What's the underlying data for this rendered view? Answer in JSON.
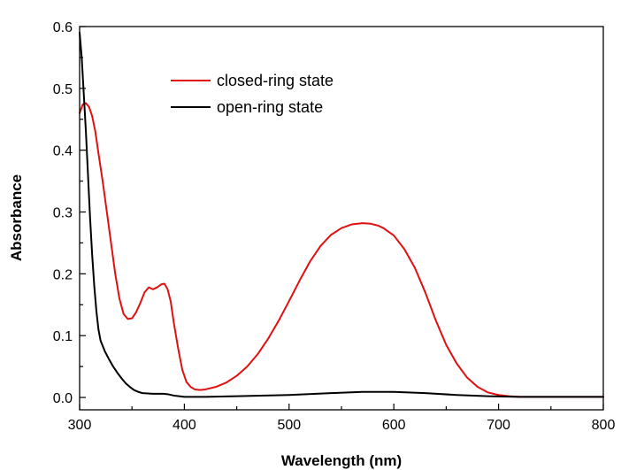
{
  "chart_data": {
    "type": "line",
    "title": "",
    "xlabel": "Wavelength (nm)",
    "ylabel": "Absorbance",
    "xlim": [
      300,
      800
    ],
    "ylim": [
      -0.02,
      0.6
    ],
    "x_ticks": [
      300,
      400,
      500,
      600,
      700,
      800
    ],
    "x_tick_labels": [
      "300",
      "400",
      "500",
      "600",
      "700",
      "800"
    ],
    "y_ticks": [
      0.0,
      0.1,
      0.2,
      0.3,
      0.4,
      0.5,
      0.6
    ],
    "y_tick_labels": [
      "0.0",
      "0.1",
      "0.2",
      "0.3",
      "0.4",
      "0.5",
      "0.6"
    ],
    "grid": false,
    "legend_position": "top-center",
    "series": [
      {
        "name": "closed-ring state",
        "color": "#e01010",
        "points": [
          [
            300,
            0.46
          ],
          [
            303,
            0.474
          ],
          [
            306,
            0.476
          ],
          [
            309,
            0.47
          ],
          [
            312,
            0.455
          ],
          [
            315,
            0.43
          ],
          [
            318,
            0.395
          ],
          [
            322,
            0.35
          ],
          [
            326,
            0.3
          ],
          [
            330,
            0.25
          ],
          [
            334,
            0.2
          ],
          [
            338,
            0.16
          ],
          [
            342,
            0.135
          ],
          [
            346,
            0.127
          ],
          [
            350,
            0.128
          ],
          [
            354,
            0.138
          ],
          [
            358,
            0.153
          ],
          [
            362,
            0.17
          ],
          [
            366,
            0.178
          ],
          [
            370,
            0.175
          ],
          [
            374,
            0.178
          ],
          [
            378,
            0.183
          ],
          [
            381,
            0.184
          ],
          [
            384,
            0.175
          ],
          [
            387,
            0.155
          ],
          [
            390,
            0.12
          ],
          [
            394,
            0.08
          ],
          [
            398,
            0.045
          ],
          [
            402,
            0.025
          ],
          [
            406,
            0.017
          ],
          [
            410,
            0.013
          ],
          [
            415,
            0.012
          ],
          [
            420,
            0.013
          ],
          [
            430,
            0.017
          ],
          [
            440,
            0.024
          ],
          [
            450,
            0.035
          ],
          [
            460,
            0.05
          ],
          [
            470,
            0.07
          ],
          [
            480,
            0.095
          ],
          [
            490,
            0.124
          ],
          [
            500,
            0.156
          ],
          [
            510,
            0.189
          ],
          [
            520,
            0.22
          ],
          [
            530,
            0.245
          ],
          [
            540,
            0.263
          ],
          [
            550,
            0.274
          ],
          [
            560,
            0.28
          ],
          [
            570,
            0.282
          ],
          [
            578,
            0.281
          ],
          [
            585,
            0.278
          ],
          [
            590,
            0.274
          ],
          [
            600,
            0.262
          ],
          [
            610,
            0.24
          ],
          [
            620,
            0.21
          ],
          [
            630,
            0.17
          ],
          [
            640,
            0.125
          ],
          [
            650,
            0.085
          ],
          [
            660,
            0.055
          ],
          [
            670,
            0.032
          ],
          [
            680,
            0.017
          ],
          [
            690,
            0.008
          ],
          [
            700,
            0.004
          ],
          [
            710,
            0.002
          ],
          [
            720,
            0.001
          ],
          [
            750,
            0.001
          ],
          [
            800,
            0.001
          ]
        ]
      },
      {
        "name": "open-ring state",
        "color": "#000000",
        "points": [
          [
            300,
            0.59
          ],
          [
            302,
            0.55
          ],
          [
            304,
            0.49
          ],
          [
            306,
            0.43
          ],
          [
            308,
            0.36
          ],
          [
            310,
            0.29
          ],
          [
            312,
            0.23
          ],
          [
            314,
            0.18
          ],
          [
            316,
            0.14
          ],
          [
            318,
            0.11
          ],
          [
            320,
            0.092
          ],
          [
            324,
            0.075
          ],
          [
            328,
            0.062
          ],
          [
            332,
            0.05
          ],
          [
            336,
            0.04
          ],
          [
            340,
            0.031
          ],
          [
            344,
            0.023
          ],
          [
            348,
            0.017
          ],
          [
            352,
            0.012
          ],
          [
            356,
            0.009
          ],
          [
            360,
            0.007
          ],
          [
            370,
            0.006
          ],
          [
            380,
            0.006
          ],
          [
            385,
            0.005
          ],
          [
            390,
            0.003
          ],
          [
            395,
            0.002
          ],
          [
            400,
            0.001
          ],
          [
            420,
            0.001
          ],
          [
            450,
            0.002
          ],
          [
            500,
            0.004
          ],
          [
            540,
            0.007
          ],
          [
            570,
            0.009
          ],
          [
            600,
            0.009
          ],
          [
            630,
            0.007
          ],
          [
            660,
            0.004
          ],
          [
            690,
            0.002
          ],
          [
            720,
            0.001
          ],
          [
            800,
            0.001
          ]
        ]
      }
    ]
  }
}
